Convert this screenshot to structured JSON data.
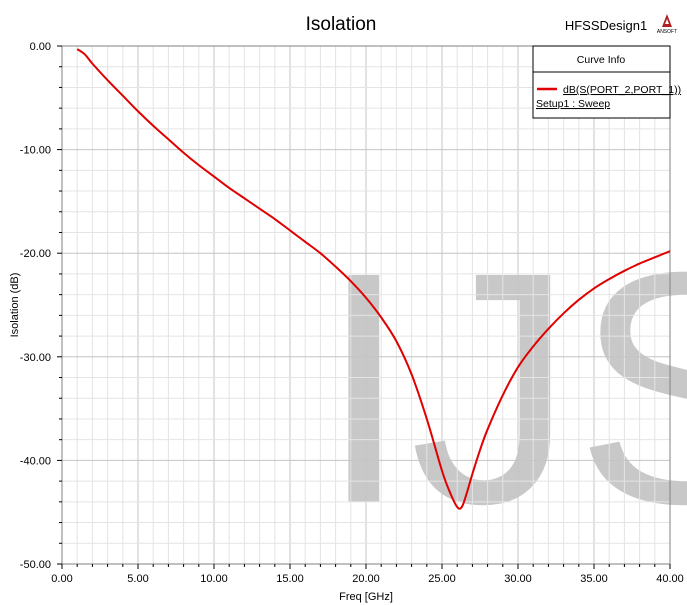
{
  "chart_data": {
    "type": "line",
    "title": "Isolation",
    "design_name": "HFSSDesign1",
    "logo_text": "ANSOFT",
    "xlabel": "Freq [GHz]",
    "ylabel": "Isolation (dB)",
    "xlim": [
      0,
      40
    ],
    "ylim": [
      -50,
      0
    ],
    "x_ticks": [
      "0.00",
      "5.00",
      "10.00",
      "15.00",
      "20.00",
      "25.00",
      "30.00",
      "35.00",
      "40.00"
    ],
    "y_ticks": [
      "0.00",
      "-10.00",
      "-20.00",
      "-30.00",
      "-40.00",
      "-50.00"
    ],
    "grid": true,
    "watermark": "IJS",
    "legend": {
      "title": "Curve Info",
      "placement": "top-right",
      "entries": [
        {
          "label": "dB(S(PORT_2,PORT_1))",
          "sublabel": "Setup1 : Sweep",
          "color": "#e00000"
        }
      ]
    },
    "series": [
      {
        "name": "dB(S(PORT_2,PORT_1))",
        "color": "#e00000",
        "x": [
          1.0,
          1.5,
          2.0,
          3.0,
          4.0,
          5.0,
          6.0,
          7.0,
          8.0,
          9.0,
          10.0,
          11.0,
          12.0,
          13.0,
          14.0,
          15.0,
          16.0,
          17.0,
          18.0,
          19.0,
          20.0,
          21.0,
          22.0,
          23.0,
          24.0,
          25.0,
          25.5,
          26.0,
          26.3,
          26.6,
          27.0,
          27.5,
          28.0,
          29.0,
          30.0,
          31.0,
          32.0,
          33.0,
          34.0,
          35.0,
          36.0,
          37.0,
          38.0,
          39.0,
          40.0
        ],
        "y": [
          -0.3,
          -0.8,
          -1.7,
          -3.3,
          -4.8,
          -6.3,
          -7.7,
          -9.0,
          -10.3,
          -11.5,
          -12.6,
          -13.7,
          -14.7,
          -15.7,
          -16.7,
          -17.8,
          -18.9,
          -20.0,
          -21.3,
          -22.7,
          -24.3,
          -26.2,
          -28.5,
          -31.7,
          -36.0,
          -41.0,
          -43.0,
          -44.5,
          -44.5,
          -43.3,
          -41.3,
          -39.0,
          -37.0,
          -33.7,
          -31.0,
          -29.0,
          -27.3,
          -25.8,
          -24.5,
          -23.4,
          -22.5,
          -21.7,
          -21.0,
          -20.4,
          -19.8
        ]
      }
    ]
  }
}
